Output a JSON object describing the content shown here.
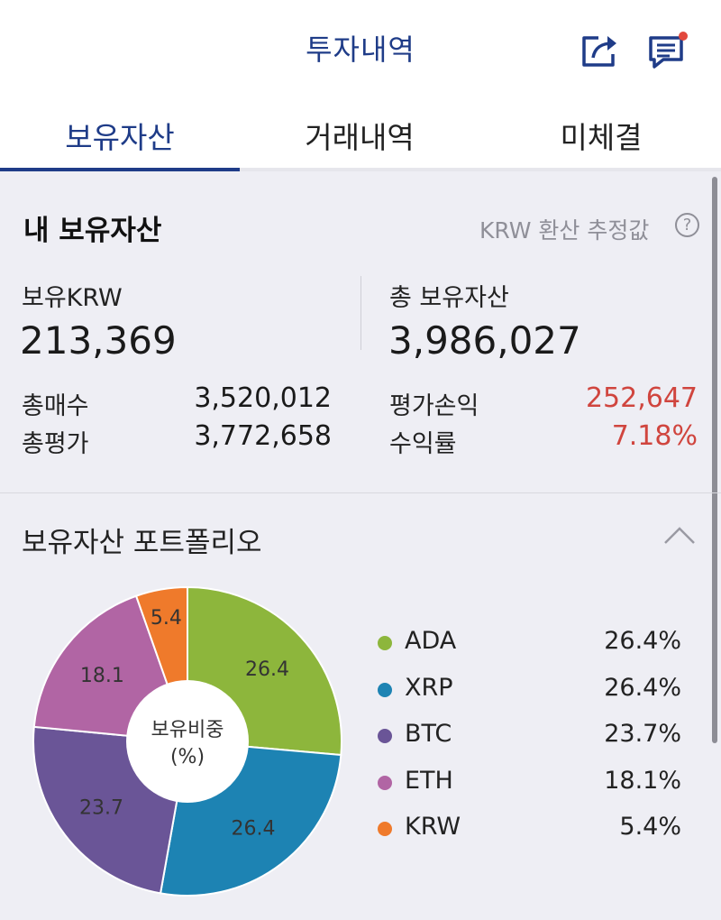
{
  "header": {
    "title": "투자내역"
  },
  "tabs": [
    {
      "label": "보유자산"
    },
    {
      "label": "거래내역"
    },
    {
      "label": "미체결"
    }
  ],
  "summary": {
    "title": "내 보유자산",
    "krw_estimate_label": "KRW 환산 추정값",
    "help_glyph": "?",
    "held_krw_label": "보유KRW",
    "held_krw_value": "213,369",
    "total_assets_label": "총 보유자산",
    "total_assets_value": "3,986,027",
    "total_buy_label": "총매수",
    "total_buy_value": "3,520,012",
    "total_eval_label": "총평가",
    "total_eval_value": "3,772,658",
    "eval_pl_label": "평가손익",
    "eval_pl_value": "252,647",
    "return_label": "수익률",
    "return_value": "7.18%",
    "gain_color": "#d0453e"
  },
  "portfolio": {
    "title": "보유자산 포트폴리오",
    "center_label_line1": "보유비중",
    "center_label_line2": "(%)"
  },
  "chart_data": {
    "type": "pie",
    "categories": [
      "ADA",
      "XRP",
      "BTC",
      "ETH",
      "KRW"
    ],
    "values": [
      26.4,
      26.4,
      23.7,
      18.1,
      5.4
    ],
    "slice_labels": [
      "26.4",
      "26.4",
      "23.7",
      "18.1",
      "5.4"
    ],
    "legend_values": [
      "26.4%",
      "26.4%",
      "23.7%",
      "18.1%",
      "5.4%"
    ],
    "colors": [
      "#8db63c",
      "#1d83b3",
      "#6a5597",
      "#b165a4",
      "#ef7a2b"
    ],
    "donut": true,
    "legend": "right"
  }
}
